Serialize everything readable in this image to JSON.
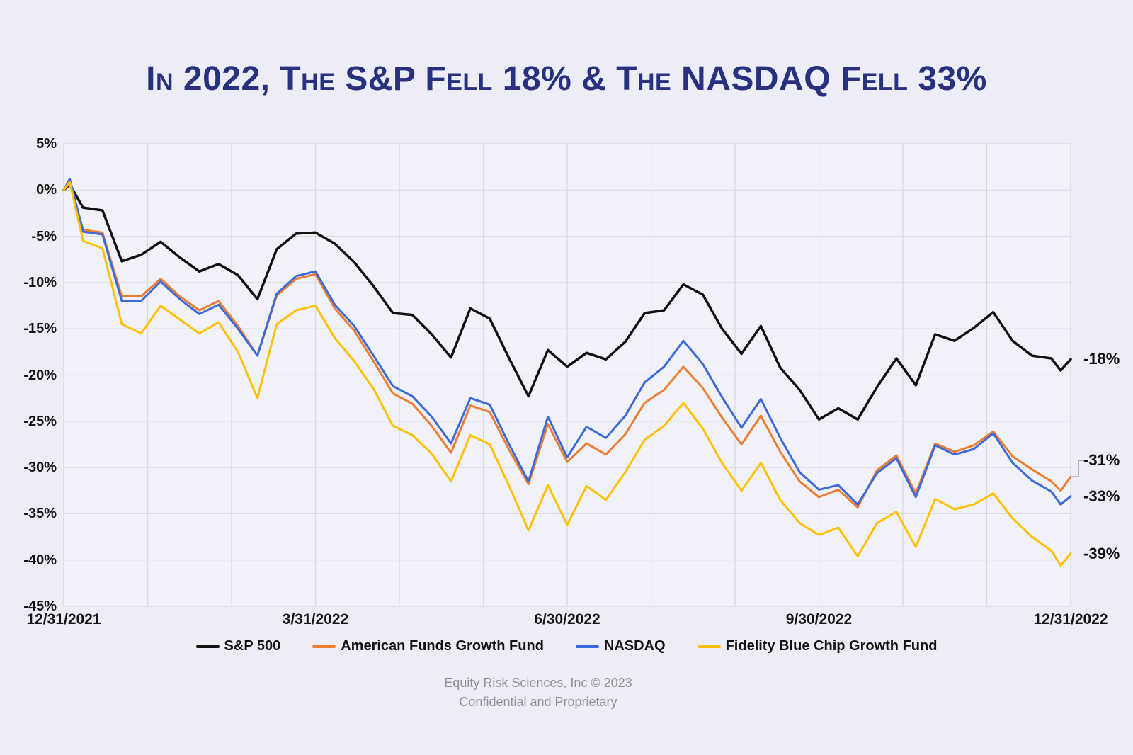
{
  "page": {
    "background": "#EDEDF8",
    "plot_background": "#F1F1FA",
    "grid_color": "#D9D9E2"
  },
  "chart_data": {
    "type": "line",
    "title": "In 2022, The S&P Fell 18% & The NASDAQ Fell 33%",
    "title_color": "#27317E",
    "xlabel": "",
    "ylabel": "",
    "ylim": [
      -45,
      5
    ],
    "y_ticks": [
      5,
      0,
      -5,
      -10,
      -15,
      -20,
      -25,
      -30,
      -35,
      -40,
      -45
    ],
    "y_tick_labels": [
      "5%",
      "0%",
      "-5%",
      "-10%",
      "-15%",
      "-20%",
      "-25%",
      "-30%",
      "-35%",
      "-40%",
      "-45%"
    ],
    "x_tick_labels": [
      "12/31/2021",
      "3/31/2022",
      "6/30/2022",
      "9/30/2022",
      "12/31/2022"
    ],
    "grid": {
      "horizontal_step_pct": 5,
      "vertical_divisions": 12,
      "visible": true
    },
    "legend_position": "bottom",
    "t": [
      0,
      0.006,
      0.0192,
      0.0385,
      0.0577,
      0.0769,
      0.0962,
      0.1154,
      0.1346,
      0.1538,
      0.1731,
      0.1923,
      0.2115,
      0.2308,
      0.25,
      0.2692,
      0.2885,
      0.3077,
      0.3269,
      0.3462,
      0.3654,
      0.3846,
      0.4038,
      0.4231,
      0.4423,
      0.4615,
      0.4808,
      0.5,
      0.5192,
      0.5385,
      0.5577,
      0.5769,
      0.5962,
      0.6154,
      0.6346,
      0.6538,
      0.6731,
      0.6923,
      0.7115,
      0.7308,
      0.75,
      0.7692,
      0.7885,
      0.8077,
      0.8269,
      0.8462,
      0.8654,
      0.8846,
      0.9038,
      0.9231,
      0.9423,
      0.9615,
      0.9808,
      0.99,
      1.0
    ],
    "series": [
      {
        "name": "S&P 500",
        "color": "#111111",
        "end_label": "-18%",
        "values": [
          0,
          0.6,
          -1.9,
          -2.2,
          -7.7,
          -7.0,
          -5.6,
          -7.3,
          -8.8,
          -8.0,
          -9.2,
          -11.8,
          -6.4,
          -4.7,
          -4.6,
          -5.8,
          -7.8,
          -10.4,
          -13.3,
          -13.5,
          -15.6,
          -18.1,
          -12.8,
          -13.9,
          -18.2,
          -22.3,
          -17.3,
          -19.1,
          -17.6,
          -18.3,
          -16.4,
          -13.3,
          -13.0,
          -10.2,
          -11.3,
          -15.0,
          -17.7,
          -14.7,
          -19.2,
          -21.6,
          -24.8,
          -23.6,
          -24.8,
          -21.3,
          -18.2,
          -21.1,
          -15.6,
          -16.3,
          -14.9,
          -13.2,
          -16.3,
          -17.9,
          -18.2,
          -19.5,
          -18.3
        ]
      },
      {
        "name": "American Funds Growth Fund",
        "color": "#ED7D31",
        "end_label": "-31%",
        "values": [
          0,
          0.8,
          -4.3,
          -4.6,
          -11.5,
          -11.5,
          -9.6,
          -11.5,
          -13.0,
          -12.0,
          -14.7,
          -17.9,
          -11.4,
          -9.6,
          -9.1,
          -12.8,
          -15.2,
          -18.5,
          -22.0,
          -23.1,
          -25.5,
          -28.4,
          -23.3,
          -24.0,
          -28.1,
          -31.8,
          -25.3,
          -29.4,
          -27.4,
          -28.6,
          -26.4,
          -23.0,
          -21.6,
          -19.1,
          -21.4,
          -24.6,
          -27.5,
          -24.4,
          -28.3,
          -31.5,
          -33.2,
          -32.4,
          -34.3,
          -30.3,
          -28.7,
          -32.8,
          -27.4,
          -28.3,
          -27.6,
          -26.1,
          -28.8,
          -30.2,
          -31.5,
          -32.5,
          -31.0
        ]
      },
      {
        "name": "NASDAQ",
        "color": "#3C6BD9",
        "end_label": "-33%",
        "values": [
          0,
          1.2,
          -4.5,
          -4.8,
          -12.0,
          -12.0,
          -9.9,
          -11.8,
          -13.4,
          -12.4,
          -15.0,
          -17.9,
          -11.2,
          -9.3,
          -8.8,
          -12.4,
          -14.7,
          -17.9,
          -21.2,
          -22.3,
          -24.5,
          -27.4,
          -22.5,
          -23.2,
          -27.5,
          -31.5,
          -24.5,
          -28.9,
          -25.6,
          -26.8,
          -24.4,
          -20.8,
          -19.1,
          -16.3,
          -18.8,
          -22.4,
          -25.7,
          -22.6,
          -26.8,
          -30.5,
          -32.4,
          -31.9,
          -34.0,
          -30.6,
          -29.0,
          -33.2,
          -27.6,
          -28.6,
          -28.0,
          -26.3,
          -29.5,
          -31.4,
          -32.6,
          -34.0,
          -33.1
        ]
      },
      {
        "name": "Fidelity Blue Chip Growth Fund",
        "color": "#FFC000",
        "end_label": "-39%",
        "values": [
          0,
          0.9,
          -5.5,
          -6.3,
          -14.5,
          -15.5,
          -12.5,
          -14.0,
          -15.5,
          -14.3,
          -17.5,
          -22.5,
          -14.5,
          -13.0,
          -12.5,
          -16.0,
          -18.5,
          -21.5,
          -25.5,
          -26.5,
          -28.5,
          -31.5,
          -26.5,
          -27.5,
          -32.0,
          -36.8,
          -31.9,
          -36.2,
          -32.0,
          -33.5,
          -30.5,
          -27.0,
          -25.5,
          -23.0,
          -25.8,
          -29.5,
          -32.5,
          -29.5,
          -33.5,
          -36.0,
          -37.3,
          -36.5,
          -39.6,
          -36.0,
          -34.8,
          -38.6,
          -33.4,
          -34.5,
          -34.0,
          -32.8,
          -35.5,
          -37.5,
          -39.0,
          -40.6,
          -39.3
        ]
      }
    ]
  },
  "footer": {
    "line1": "Equity Risk Sciences, Inc © 2023",
    "line2": "Confidential and Proprietary"
  }
}
